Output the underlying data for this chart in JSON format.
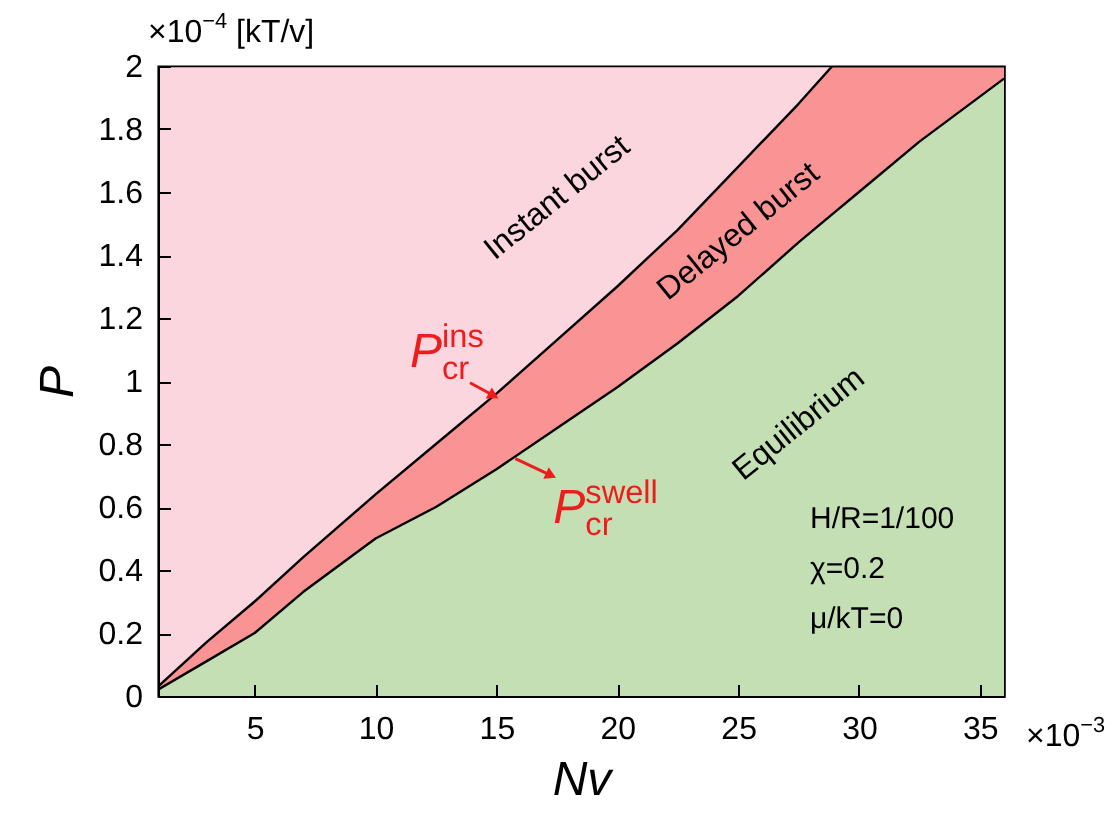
{
  "chart_data": {
    "type": "area",
    "stacked": true,
    "xlabel": "Nv",
    "ylabel": "P",
    "x": [
      1,
      3,
      5,
      7,
      10,
      12.5,
      15,
      17.5,
      20,
      22.5,
      25,
      27.5,
      28.9,
      30,
      32.5,
      36
    ],
    "series": [
      {
        "name": "Equilibrium",
        "color": "#c5dfb4",
        "values": [
          0.02,
          0.11,
          0.2,
          0.33,
          0.5,
          0.6,
          0.72,
          0.85,
          0.98,
          1.12,
          1.27,
          1.44,
          1.53,
          1.6,
          1.76,
          1.96
        ]
      },
      {
        "name": "Delayed burst",
        "color": "#fa9494",
        "values": [
          0.01,
          0.06,
          0.1,
          0.11,
          0.14,
          0.2,
          0.24,
          0.28,
          0.32,
          0.36,
          0.41,
          0.44,
          0.47,
          0.4,
          0.24,
          0.04
        ]
      },
      {
        "name": "Instant burst",
        "color": "#fbd6de",
        "values": [
          1.97,
          1.83,
          1.7,
          1.56,
          1.36,
          1.2,
          1.04,
          0.87,
          0.7,
          0.52,
          0.32,
          0.12,
          0,
          0,
          0,
          0
        ]
      }
    ],
    "xlim": [
      1,
      36
    ],
    "xticks": [
      5,
      10,
      15,
      20,
      25,
      30,
      35
    ],
    "ylim": [
      0,
      2
    ],
    "yticks": [
      0,
      0.2,
      0.4,
      0.6,
      0.8,
      1,
      1.2,
      1.4,
      1.6,
      1.8,
      2
    ],
    "annotations": [
      "×10$^{−4}$ [kT/v]",
      "×10$^{−3}$",
      "H/R=1/100",
      "χ=0.2",
      "μ/kT=0",
      {
        "text": "P$_{cr}$$^{ins}$",
        "x": 14.9,
        "y": 0.95
      },
      {
        "text": "P$_{cr}$$^{swell}$",
        "x": 15.7,
        "y": 0.76
      }
    ]
  }
}
